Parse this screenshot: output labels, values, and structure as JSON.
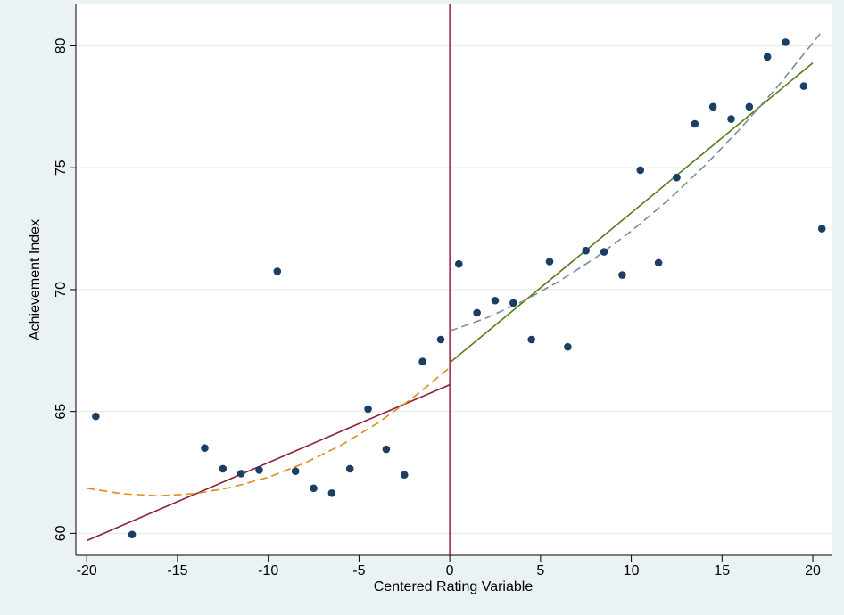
{
  "chart_data": {
    "type": "scatter",
    "xlabel": "Centered Rating Variable",
    "ylabel": "Achievement Index",
    "xlim": [
      -20.6,
      21.03
    ],
    "ylim": [
      59.1,
      81.7
    ],
    "xticks": [
      -20,
      -15,
      -10,
      -5,
      0,
      5,
      10,
      15,
      20
    ],
    "yticks": [
      60,
      65,
      70,
      75,
      80
    ],
    "grid": true,
    "vline": 0,
    "vline_color": "#9b1c4c",
    "series": [
      {
        "type": "scatter",
        "color": "#1a3f63",
        "x": [
          -19.5,
          -17.5,
          -13.5,
          -12.5,
          -11.5,
          -10.5,
          -9.5,
          -8.5,
          -7.5,
          -6.5,
          -5.5,
          -4.5,
          -3.5,
          -2.5,
          -1.5,
          -0.5,
          0.5,
          1.5,
          2.5,
          3.5,
          4.5,
          5.5,
          6.5,
          7.5,
          8.5,
          9.5,
          10.5,
          11.5,
          12.5,
          13.5,
          14.5,
          15.5,
          16.5,
          17.5,
          18.5,
          19.5,
          20.5
        ],
        "values": [
          64.8,
          59.95,
          63.5,
          62.65,
          62.45,
          62.6,
          70.75,
          62.55,
          61.85,
          61.65,
          62.65,
          65.1,
          63.45,
          62.4,
          67.05,
          67.95,
          71.05,
          69.05,
          69.55,
          69.45,
          67.95,
          71.15,
          67.65,
          71.6,
          71.55,
          70.6,
          74.9,
          71.1,
          74.6,
          76.8,
          77.5,
          77.0,
          77.5,
          79.55,
          80.15,
          78.35,
          72.5
        ]
      },
      {
        "type": "line",
        "color": "#8b2232",
        "dashed": false,
        "x": [
          -20,
          0
        ],
        "values": [
          59.7,
          66.1
        ]
      },
      {
        "type": "line",
        "color": "#5a7a1a",
        "dashed": false,
        "x": [
          0,
          20
        ],
        "values": [
          67.0,
          79.3
        ]
      },
      {
        "type": "line",
        "color": "#e08a1e",
        "dashed": true,
        "x": [
          -20,
          -18,
          -16,
          -14,
          -12,
          -10,
          -8,
          -6,
          -4,
          -2,
          0
        ],
        "values": [
          61.85,
          61.62,
          61.54,
          61.63,
          61.89,
          62.3,
          62.88,
          63.61,
          64.51,
          65.58,
          66.8
        ]
      },
      {
        "type": "line",
        "color": "#7a8f8f",
        "dashed": true,
        "x": [
          0,
          2,
          4,
          6,
          8,
          10,
          12,
          14,
          16,
          18,
          20,
          20.4
        ],
        "values": [
          68.3,
          68.83,
          69.51,
          70.33,
          71.29,
          72.4,
          73.65,
          75.05,
          76.6,
          78.28,
          80.12,
          80.5
        ]
      }
    ]
  }
}
